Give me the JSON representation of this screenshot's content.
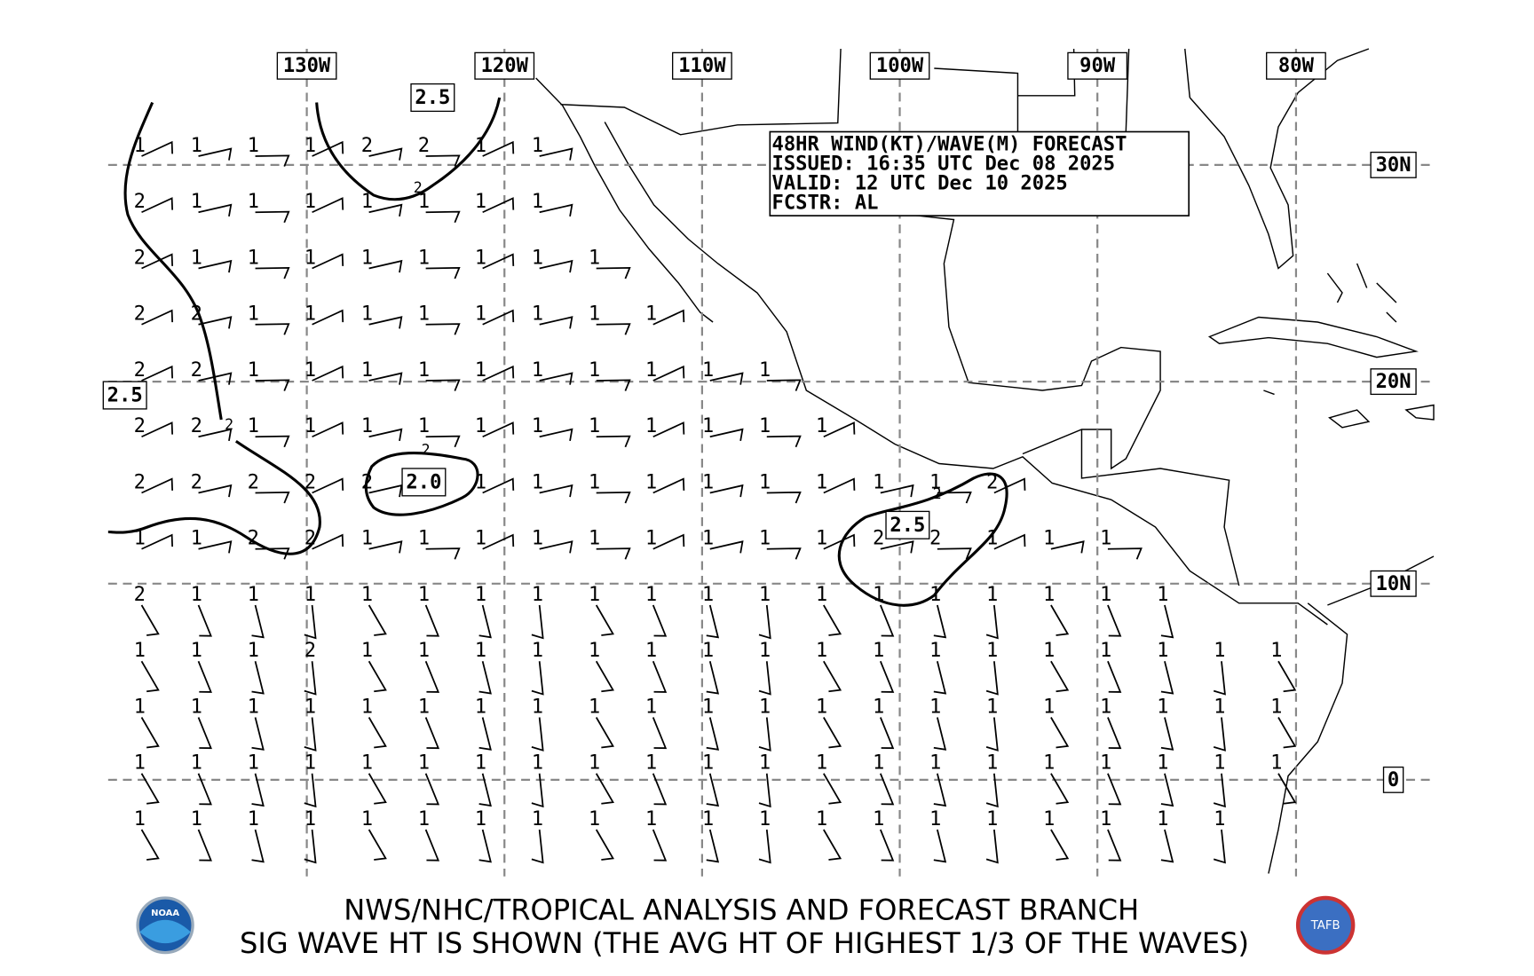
{
  "map": {
    "lon_labels": [
      "130W",
      "120W",
      "110W",
      "100W",
      "90W",
      "80W"
    ],
    "lat_labels": [
      "30N",
      "20N",
      "10N",
      "0"
    ],
    "forecast_box": {
      "lines": [
        "48HR WIND(KT)/WAVE(M) FORECAST",
        "ISSUED: 16:35 UTC Dec 08 2025",
        "VALID: 12 UTC Dec 10 2025",
        "FCSTR: AL"
      ]
    },
    "contour_labels": [
      "2.5",
      "2.5",
      "2.0",
      "2.5"
    ],
    "contour_minor_labels": [
      "2",
      "2",
      "2",
      "2"
    ],
    "wave_heights": [
      [
        1,
        1,
        1,
        1,
        2,
        2,
        1,
        1
      ],
      [
        2,
        1,
        1,
        1,
        1,
        1,
        1,
        1
      ],
      [
        2,
        1,
        1,
        1,
        1,
        1,
        1,
        1,
        1
      ],
      [
        2,
        2,
        1,
        1,
        1,
        1,
        1,
        1,
        1,
        1
      ],
      [
        2,
        2,
        1,
        1,
        1,
        1,
        1,
        1,
        1,
        1,
        1,
        1
      ],
      [
        2,
        2,
        1,
        1,
        1,
        1,
        1,
        1,
        1,
        1,
        1,
        1,
        1
      ],
      [
        2,
        2,
        2,
        2,
        2,
        null,
        1,
        1,
        1,
        1,
        1,
        1,
        1,
        1,
        1,
        2
      ],
      [
        1,
        1,
        2,
        2,
        1,
        1,
        1,
        1,
        1,
        1,
        1,
        1,
        1,
        2,
        2,
        1,
        1,
        1
      ],
      [
        2,
        1,
        1,
        1,
        1,
        1,
        1,
        1,
        1,
        1,
        1,
        1,
        1,
        1,
        1,
        1,
        1,
        1,
        1
      ],
      [
        1,
        1,
        1,
        2,
        1,
        1,
        1,
        1,
        1,
        1,
        1,
        1,
        1,
        1,
        1,
        1,
        1,
        1,
        1,
        1,
        1
      ],
      [
        1,
        1,
        1,
        1,
        1,
        1,
        1,
        1,
        1,
        1,
        1,
        1,
        1,
        1,
        1,
        1,
        1,
        1,
        1,
        1,
        1
      ],
      [
        1,
        1,
        1,
        1,
        1,
        1,
        1,
        1,
        1,
        1,
        1,
        1,
        1,
        1,
        1,
        1,
        1,
        1,
        1,
        1,
        1
      ],
      [
        1,
        1,
        1,
        1,
        1,
        1,
        1,
        1,
        1,
        1,
        1,
        1,
        1,
        1,
        1,
        1,
        1,
        1,
        1,
        1
      ]
    ]
  },
  "footer": {
    "line1": "NWS/NHC/TROPICAL ANALYSIS AND FORECAST BRANCH",
    "line2": "SIG WAVE HT IS SHOWN (THE AVG HT OF HIGHEST 1/3 OF THE WAVES)"
  }
}
